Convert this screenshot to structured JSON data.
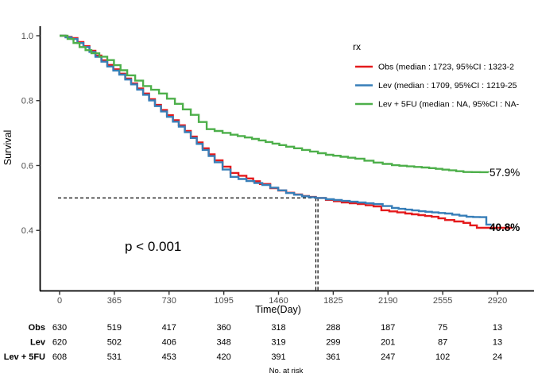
{
  "chart_data": {
    "type": "line",
    "subtype": "kaplan-meier-step",
    "title": "",
    "xlabel": "Time(Day)",
    "ylabel": "Survival",
    "x_ticks": [
      0,
      365,
      730,
      1095,
      1460,
      1825,
      2190,
      2555,
      2920
    ],
    "y_ticks": [
      1.0,
      0.8,
      0.6,
      0.4
    ],
    "y_tick_labels": [
      "1.0",
      "0.8",
      "0.6",
      "0.4"
    ],
    "xlim": [
      0,
      3165
    ],
    "ylim": [
      0.215,
      1.03
    ],
    "grid": false,
    "legend_position": "top-right",
    "legend_title": "rx",
    "p_value": "p < 0.001",
    "median_lines": {
      "y": 0.5,
      "x_values": [
        1709,
        1723
      ]
    },
    "legend_entries": [
      {
        "color": "#E41A1C",
        "label": "Obs (median : 1723, 95%CI : 1323-2"
      },
      {
        "color": "#377EB8",
        "label": "Lev (median : 1709, 95%CI : 1219-25"
      },
      {
        "color": "#4DAF4A",
        "label": "Lev + 5FU (median : NA, 95%CI : NA-"
      }
    ],
    "series": [
      {
        "name": "Obs",
        "color": "#E41A1C",
        "end_label": "40.8%",
        "points": [
          [
            0,
            1.0
          ],
          [
            80,
            0.993
          ],
          [
            159,
            0.968
          ],
          [
            239,
            0.939
          ],
          [
            318,
            0.91
          ],
          [
            398,
            0.883
          ],
          [
            477,
            0.853
          ],
          [
            557,
            0.822
          ],
          [
            636,
            0.787
          ],
          [
            716,
            0.755
          ],
          [
            795,
            0.724
          ],
          [
            875,
            0.689
          ],
          [
            954,
            0.653
          ],
          [
            1034,
            0.616
          ],
          [
            1140,
            0.577
          ],
          [
            1246,
            0.56
          ],
          [
            1336,
            0.543
          ],
          [
            1405,
            0.53
          ],
          [
            1511,
            0.516
          ],
          [
            1617,
            0.506
          ],
          [
            1709,
            0.5
          ],
          [
            1776,
            0.494
          ],
          [
            1882,
            0.486
          ],
          [
            1988,
            0.481
          ],
          [
            2094,
            0.474
          ],
          [
            2146,
            0.462
          ],
          [
            2305,
            0.452
          ],
          [
            2481,
            0.442
          ],
          [
            2571,
            0.432
          ],
          [
            2693,
            0.423
          ],
          [
            2783,
            0.408
          ],
          [
            3020,
            0.408
          ]
        ]
      },
      {
        "name": "Lev",
        "color": "#377EB8",
        "end_label": "",
        "points": [
          [
            0,
            1.0
          ],
          [
            80,
            0.99
          ],
          [
            159,
            0.965
          ],
          [
            239,
            0.935
          ],
          [
            318,
            0.905
          ],
          [
            398,
            0.88
          ],
          [
            477,
            0.85
          ],
          [
            557,
            0.818
          ],
          [
            636,
            0.783
          ],
          [
            716,
            0.75
          ],
          [
            795,
            0.72
          ],
          [
            875,
            0.685
          ],
          [
            954,
            0.648
          ],
          [
            1034,
            0.61
          ],
          [
            1140,
            0.565
          ],
          [
            1246,
            0.552
          ],
          [
            1352,
            0.54
          ],
          [
            1511,
            0.515
          ],
          [
            1617,
            0.505
          ],
          [
            1709,
            0.5
          ],
          [
            1776,
            0.496
          ],
          [
            1988,
            0.486
          ],
          [
            2094,
            0.481
          ],
          [
            2216,
            0.469
          ],
          [
            2396,
            0.459
          ],
          [
            2571,
            0.452
          ],
          [
            2714,
            0.442
          ],
          [
            2846,
            0.44
          ],
          [
            2846,
            0.418
          ],
          [
            2880,
            0.418
          ]
        ]
      },
      {
        "name": "Lev + 5FU",
        "color": "#4DAF4A",
        "end_label": "57.9%",
        "points": [
          [
            0,
            1.0
          ],
          [
            53,
            0.99
          ],
          [
            133,
            0.965
          ],
          [
            212,
            0.946
          ],
          [
            318,
            0.925
          ],
          [
            451,
            0.878
          ],
          [
            557,
            0.845
          ],
          [
            663,
            0.822
          ],
          [
            769,
            0.79
          ],
          [
            875,
            0.756
          ],
          [
            981,
            0.712
          ],
          [
            1140,
            0.695
          ],
          [
            1283,
            0.682
          ],
          [
            1511,
            0.658
          ],
          [
            1776,
            0.633
          ],
          [
            1972,
            0.621
          ],
          [
            2094,
            0.609
          ],
          [
            2216,
            0.601
          ],
          [
            2465,
            0.592
          ],
          [
            2597,
            0.585
          ],
          [
            2693,
            0.58
          ],
          [
            2860,
            0.579
          ]
        ]
      }
    ]
  },
  "risk_table": {
    "caption": "No. at risk",
    "time_points": [
      0,
      365,
      730,
      1095,
      1460,
      1825,
      2190,
      2555,
      2920
    ],
    "rows": [
      {
        "label": "Obs",
        "values": [
          "630",
          "519",
          "417",
          "360",
          "318",
          "288",
          "187",
          "75",
          "13"
        ]
      },
      {
        "label": "Lev",
        "values": [
          "620",
          "502",
          "406",
          "348",
          "319",
          "299",
          "201",
          "87",
          "13"
        ]
      },
      {
        "label": "Lev + 5FU",
        "values": [
          "608",
          "531",
          "453",
          "420",
          "391",
          "361",
          "247",
          "102",
          "24"
        ]
      }
    ]
  }
}
